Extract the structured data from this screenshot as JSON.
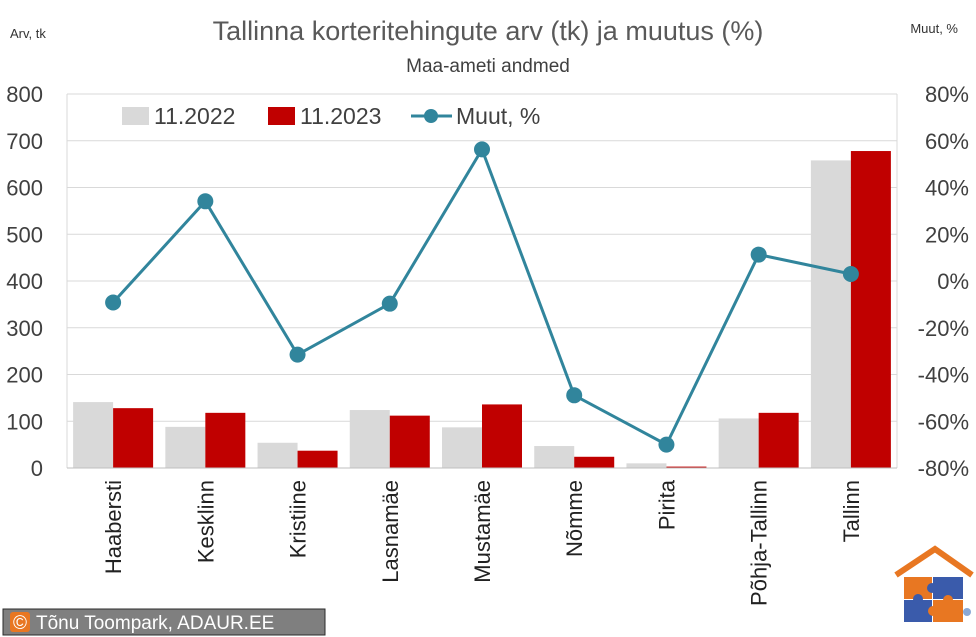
{
  "chart_data": {
    "type": "bar",
    "title": "Tallinna korteritehingute arv (tk) ja muutus (%)",
    "subtitle": "Maa-ameti andmed",
    "ylabel": "Arv, tk",
    "y2label": "Muut, %",
    "ylim": [
      0,
      800
    ],
    "y2lim": [
      -80,
      80
    ],
    "y_ticks": [
      "0",
      "100",
      "200",
      "300",
      "400",
      "500",
      "600",
      "700",
      "800"
    ],
    "y2_ticks": [
      "-80%",
      "-60%",
      "-40%",
      "-20%",
      "0%",
      "20%",
      "40%",
      "60%",
      "80%"
    ],
    "categories": [
      "Haabersti",
      "Kesklinn",
      "Kristiine",
      "Lasnamäe",
      "Mustamäe",
      "Nõmme",
      "Pirita",
      "Põhja-Tallinn",
      "Tallinn"
    ],
    "series": [
      {
        "name": "11.2022",
        "type": "bar",
        "color": "#d9d9d9",
        "values": [
          141,
          88,
          54,
          124,
          87,
          47,
          10,
          106,
          658
        ]
      },
      {
        "name": "11.2023",
        "type": "bar",
        "color": "#c00000",
        "values": [
          128,
          118,
          37,
          112,
          136,
          24,
          3,
          118,
          678
        ]
      },
      {
        "name": "Muut, %",
        "type": "line",
        "axis": "right",
        "color": "#31859c",
        "values": [
          -9.2,
          34.1,
          -31.5,
          -9.7,
          56.3,
          -48.9,
          -70.0,
          11.3,
          3.0
        ]
      }
    ],
    "grid": true,
    "legend": "top"
  },
  "credit": {
    "symbol": "©",
    "text": "Tõnu Toompark, ADAUR.EE"
  },
  "logo": {
    "icon": "house-puzzle-icon",
    "colors": [
      "#e87722",
      "#3a5bab",
      "#8aa9d6"
    ]
  }
}
